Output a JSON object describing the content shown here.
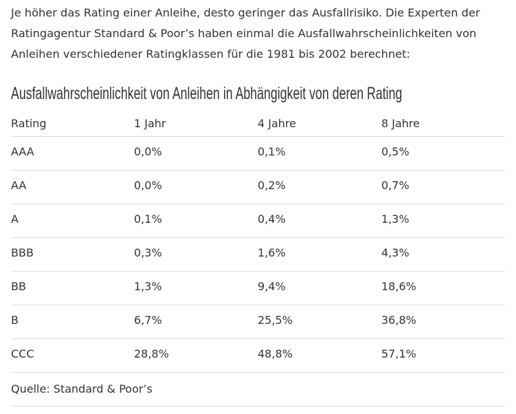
{
  "intro": "Je höher das Rating einer Anleihe, desto geringer das Ausfallrisiko. Die Experten der Ratingagentur Standard & Poor’s haben einmal die Ausfallwahrscheinlichkeiten von Anleihen verschiedener Ratingklassen für die 1981 bis 2002 berechnet:",
  "table": {
    "title": "Ausfallwahrscheinlichkeit von Anleihen in Abhängigkeit von deren Rating",
    "headers": [
      "Rating",
      "1 Jahr",
      "4 Jahre",
      "8 Jahre"
    ],
    "rows": [
      [
        "AAA",
        "0,0%",
        "0,1%",
        "0,5%"
      ],
      [
        "AA",
        "0,0%",
        "0,2%",
        "0,7%"
      ],
      [
        "A",
        "0,1%",
        "0,4%",
        "1,3%"
      ],
      [
        "BBB",
        "0,3%",
        "1,6%",
        "4,3%"
      ],
      [
        "BB",
        "1,3%",
        "9,4%",
        "18,6%"
      ],
      [
        "B",
        "6,7%",
        "25,5%",
        "36,8%"
      ],
      [
        "CCC",
        "28,8%",
        "48,8%",
        "57,1%"
      ]
    ],
    "source": "Quelle: Standard & Poor’s"
  }
}
